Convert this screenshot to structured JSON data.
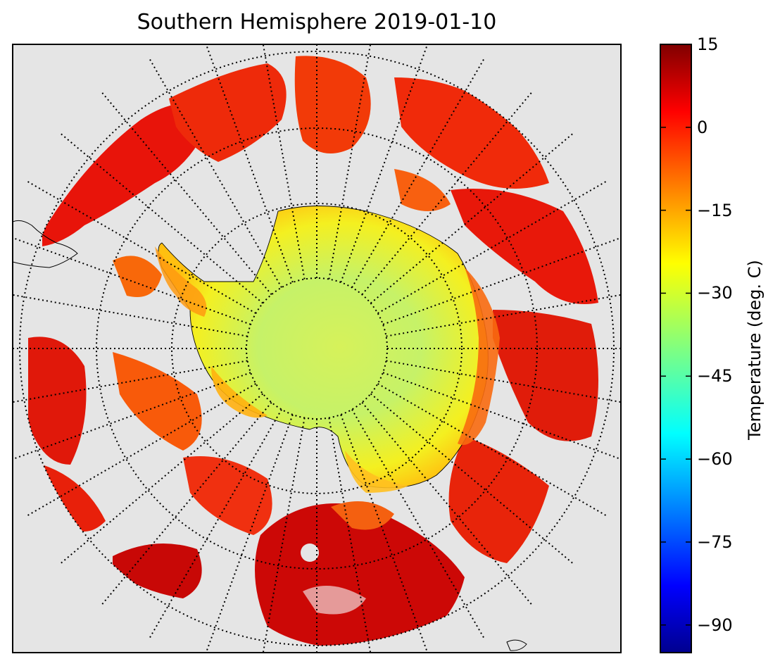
{
  "title": "Southern Hemisphere 2019-01-10",
  "colorbar": {
    "label": "Temperature (deg. C)",
    "min": -95,
    "max": 15,
    "colormap": "jet",
    "ticks": [
      {
        "value": 15,
        "label": "15"
      },
      {
        "value": 0,
        "label": "0"
      },
      {
        "value": -15,
        "label": "−15"
      },
      {
        "value": -30,
        "label": "−30"
      },
      {
        "value": -45,
        "label": "−45"
      },
      {
        "value": -60,
        "label": "−60"
      },
      {
        "value": -75,
        "label": "−75"
      },
      {
        "value": -90,
        "label": "−90"
      }
    ]
  },
  "map": {
    "projection": "south polar stereographic",
    "background_color": "#e5e5e5",
    "graticule": "dotted",
    "latitude_circles": 4,
    "meridian_spacing_deg": 10
  }
}
